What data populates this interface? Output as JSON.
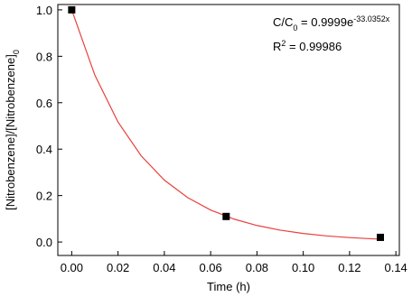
{
  "chart_data": {
    "type": "scatter",
    "xlabel": "Time (h)",
    "ylabel": {
      "parts": [
        {
          "text": "[Nitrobenzene]/[Nitrobenzene]"
        },
        {
          "text": "0",
          "style": "sub"
        }
      ]
    },
    "annotations": [
      {
        "parts": [
          {
            "text": "C/C"
          },
          {
            "text": "0",
            "style": "sub"
          },
          {
            "text": " = 0.9999e"
          },
          {
            "text": "-33.0352x",
            "style": "sup"
          }
        ]
      },
      {
        "parts": [
          {
            "text": "R"
          },
          {
            "text": "2",
            "style": "sup"
          },
          {
            "text": " = 0.99986"
          }
        ]
      }
    ],
    "xlim": [
      -0.006,
      0.1415
    ],
    "ylim": [
      -0.058,
      1.023
    ],
    "xticks": [
      {
        "value": 0,
        "label": "0.00"
      },
      {
        "value": 0.02,
        "label": "0.02"
      },
      {
        "value": 0.04,
        "label": "0.04"
      },
      {
        "value": 0.06,
        "label": "0.06"
      },
      {
        "value": 0.08,
        "label": "0.08"
      },
      {
        "value": 0.1,
        "label": "0.10"
      },
      {
        "value": 0.12,
        "label": "0.12"
      },
      {
        "value": 0.14,
        "label": "0.14"
      }
    ],
    "yticks": [
      {
        "value": 0,
        "label": "0.0"
      },
      {
        "value": 0.2,
        "label": "0.2"
      },
      {
        "value": 0.4,
        "label": "0.4"
      },
      {
        "value": 0.6,
        "label": "0.6"
      },
      {
        "value": 0.8,
        "label": "0.8"
      },
      {
        "value": 1,
        "label": "1.0"
      }
    ],
    "series": [
      {
        "type": "line",
        "color": "#e8413c",
        "x": [
          0,
          0.01,
          0.02,
          0.03,
          0.04,
          0.05,
          0.06,
          0.07,
          0.08,
          0.09,
          0.1,
          0.11,
          0.12,
          0.13,
          0.1333
        ],
        "values": [
          0.9999,
          0.7186,
          0.5165,
          0.3712,
          0.2667,
          0.1917,
          0.1378,
          0.099,
          0.0712,
          0.0511,
          0.0368,
          0.0264,
          0.019,
          0.0136,
          0.0122
        ]
      },
      {
        "type": "scatter",
        "color": "#000000",
        "x": [
          0,
          0.0667,
          0.1333
        ],
        "values": [
          1.0,
          0.11,
          0.02
        ]
      }
    ]
  }
}
